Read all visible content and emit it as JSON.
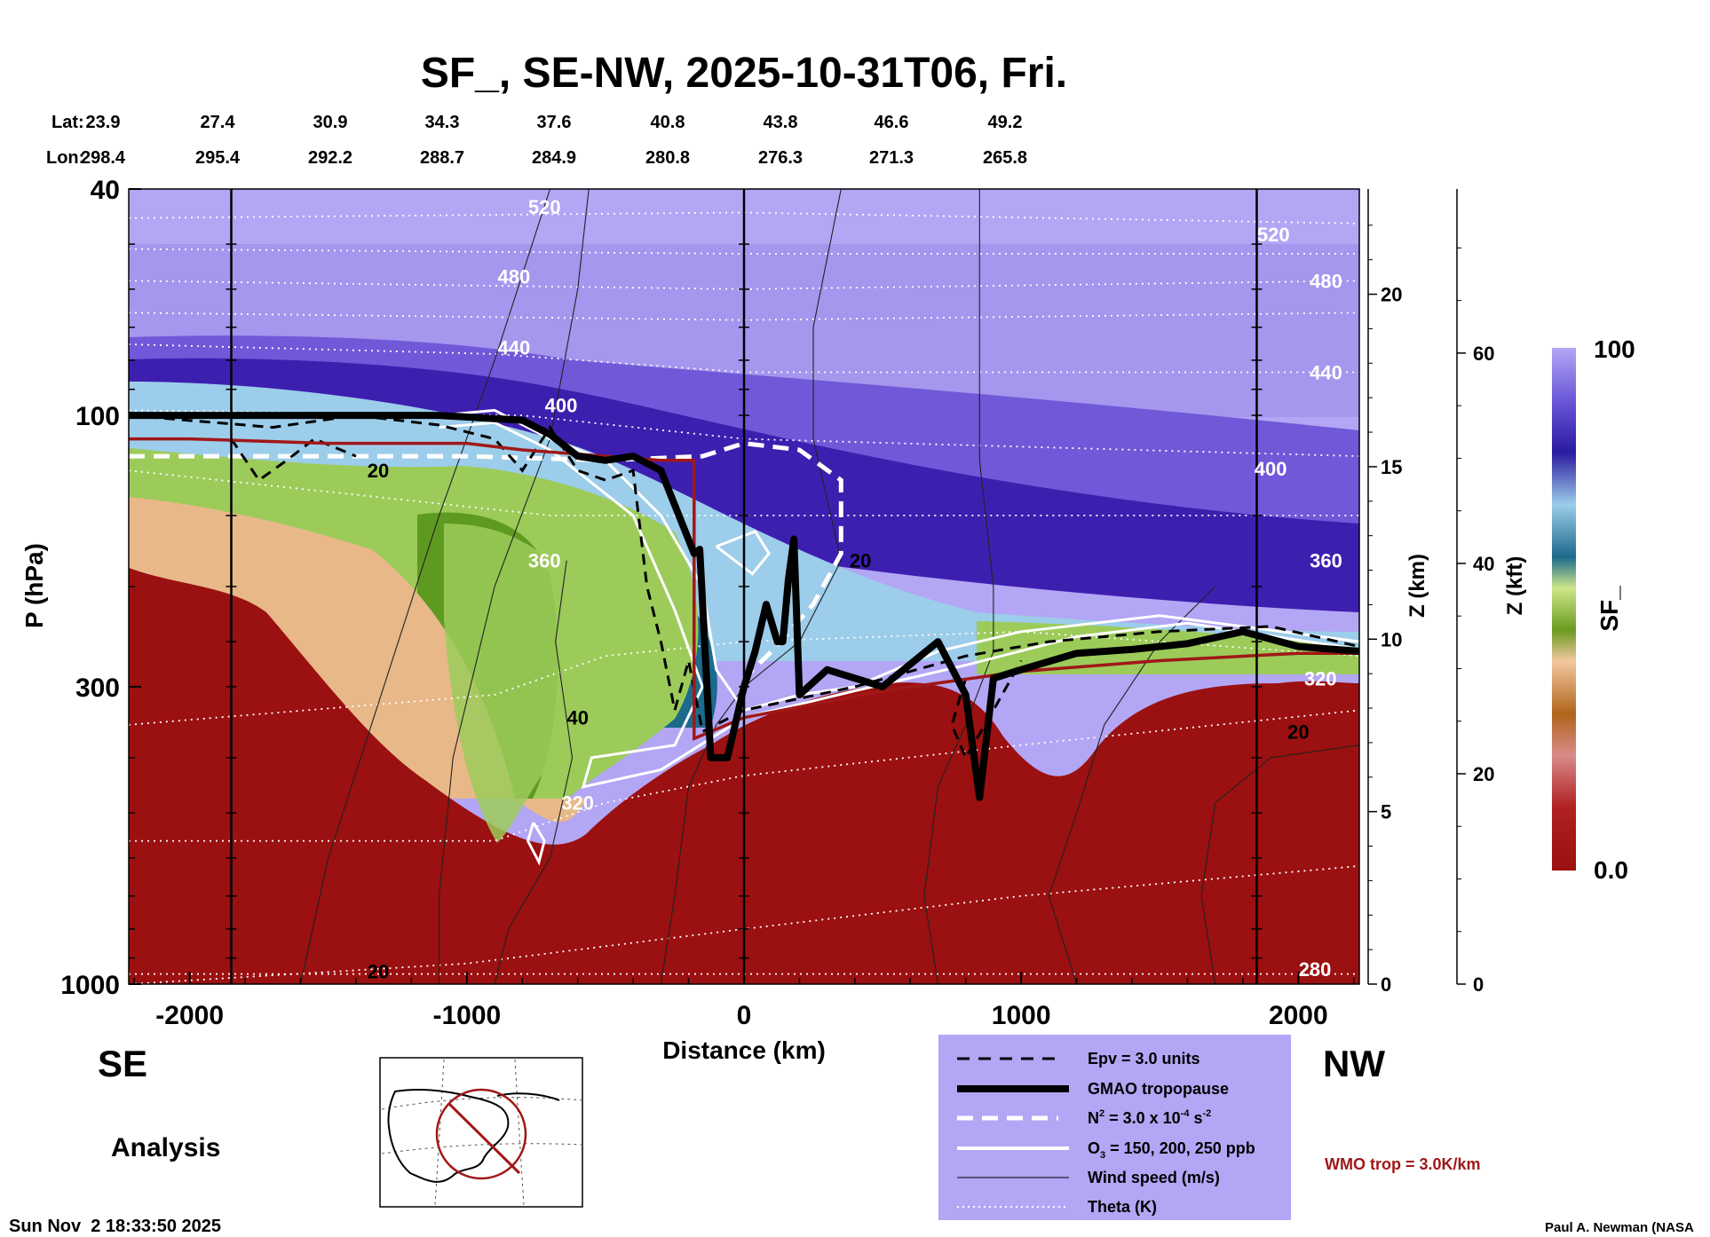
{
  "title": "SF_, SE-NW, 2025-10-31T06, Fri.",
  "lat_label": "Lat:",
  "lon_label": "Lon:",
  "lat_values": [
    "23.9",
    "27.4",
    "30.9",
    "34.3",
    "37.6",
    "40.8",
    "43.8",
    "46.6",
    "49.2"
  ],
  "lon_values": [
    "298.4",
    "295.4",
    "292.2",
    "288.7",
    "284.9",
    "280.8",
    "276.3",
    "271.3",
    "265.8"
  ],
  "left_direction": "SE",
  "right_direction": "NW",
  "run_label": "Analysis",
  "timestamp": "Sun Nov  2 18:33:50 2025",
  "credit": "Paul A. Newman (NASA",
  "wmo_note": "WMO trop = 3.0K/km",
  "legend": {
    "epv": "Epv = 3.0 units",
    "tropopause": "GMAO tropopause",
    "n2_a": "N",
    "n2_b": " = 3.0 x 10",
    "n2_c": "-4",
    "n2_d": " s",
    "n2_e": "-2",
    "o3_a": "O",
    "o3_b": " = 150, 200, 250 ppb",
    "wind": "Wind speed (m/s)",
    "theta": "Theta (K)"
  },
  "colorbar": {
    "label": "SF_",
    "max_label": "100",
    "min_label": "0.0"
  },
  "colors": {
    "plot_bg": "#b3a6f5",
    "stratosphere_deep": "#3d1fb0",
    "troposphere": "#9b1010",
    "legend_bg": "#b3a6f5",
    "wmo_line": "#a01818"
  },
  "chart_data": {
    "type": "heatmap",
    "title": "SF_, SE-NW, 2025-10-31T06, Fri.",
    "xlabel": "Distance (km)",
    "ylabel": "P (hPa)",
    "z_km_label": "Z (km)",
    "z_kft_label": "Z (kft)",
    "xlim": [
      -2220,
      2220
    ],
    "ylim": [
      1000,
      40
    ],
    "y_scale": "log",
    "x_ticks": [
      -2000,
      -1000,
      0,
      1000,
      2000
    ],
    "x_tick_labels": [
      "-2000",
      "-1000",
      "0",
      "1000",
      "2000"
    ],
    "p_ticks": [
      40,
      100,
      300,
      1000
    ],
    "p_tick_labels": [
      "40",
      "100",
      "300",
      "1000"
    ],
    "z_km_ticks": [
      0,
      5,
      10,
      15,
      20
    ],
    "z_km_tick_labels": [
      "0",
      "5",
      "10",
      "15",
      "20"
    ],
    "z_kft_ticks": [
      0,
      20,
      40,
      60
    ],
    "z_kft_tick_labels": [
      "0",
      "20",
      "40",
      "60"
    ],
    "colorbar_range": [
      0,
      100
    ],
    "theta_labels": [
      {
        "text": "520",
        "x": -720,
        "p": 43
      },
      {
        "text": "480",
        "x": -830,
        "p": 57
      },
      {
        "text": "440",
        "x": -830,
        "p": 76
      },
      {
        "text": "400",
        "x": -660,
        "p": 96
      },
      {
        "text": "360",
        "x": -720,
        "p": 180
      },
      {
        "text": "320",
        "x": -600,
        "p": 480
      },
      {
        "text": "520",
        "x": 1910,
        "p": 48
      },
      {
        "text": "480",
        "x": 2100,
        "p": 58
      },
      {
        "text": "440",
        "x": 2100,
        "p": 84
      },
      {
        "text": "400",
        "x": 1900,
        "p": 124
      },
      {
        "text": "360",
        "x": 2100,
        "p": 180
      },
      {
        "text": "320",
        "x": 2080,
        "p": 290
      },
      {
        "text": "280",
        "x": 2060,
        "p": 940
      }
    ],
    "wind_labels": [
      {
        "text": "20",
        "x": -1320,
        "p": 125
      },
      {
        "text": "40",
        "x": -600,
        "p": 340
      },
      {
        "text": "20",
        "x": 420,
        "p": 180
      },
      {
        "text": "20",
        "x": 2000,
        "p": 360
      },
      {
        "text": "20",
        "x": -1320,
        "p": 950
      }
    ],
    "gmao_tropopause": {
      "x": [
        -2220,
        -1400,
        -1100,
        -800,
        -700,
        -600,
        -500,
        -400,
        -300,
        -180,
        -160,
        -120,
        -60,
        0,
        40,
        80,
        120,
        140,
        160,
        180,
        200,
        300,
        500,
        700,
        800,
        850,
        900,
        1000,
        1200,
        1400,
        1600,
        1800,
        2000,
        2220
      ],
      "p": [
        100,
        100,
        100,
        102,
        108,
        118,
        120,
        118,
        125,
        175,
        172,
        400,
        400,
        300,
        260,
        215,
        250,
        250,
        195,
        165,
        310,
        280,
        300,
        250,
        310,
        470,
        290,
        280,
        262,
        258,
        252,
        240,
        255,
        260
      ]
    },
    "wmo_tropopause": {
      "x": [
        -2220,
        -2000,
        -1500,
        -1000,
        -800,
        -500,
        -300,
        -180,
        -180,
        0,
        500,
        1000,
        1500,
        2000,
        2220
      ],
      "p": [
        110,
        110,
        112,
        112,
        115,
        118,
        120,
        120,
        370,
        340,
        305,
        282,
        270,
        262,
        262
      ]
    }
  }
}
